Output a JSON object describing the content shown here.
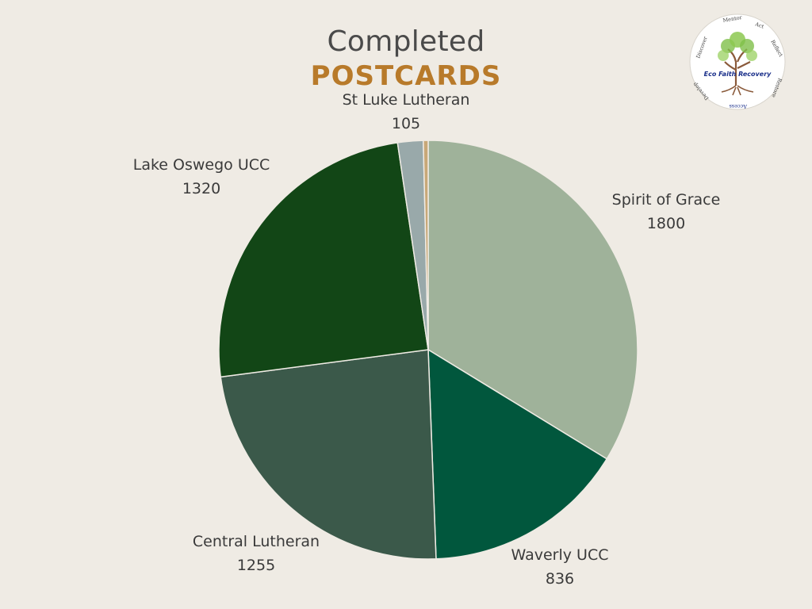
{
  "title": {
    "line1": "Completed",
    "line2": "POSTCARDS"
  },
  "logo": {
    "name": "Eco Faith Recovery",
    "ring_words": [
      "Discover",
      "Mentor",
      "Act",
      "Reflect",
      "Restore",
      "Access",
      "Develop"
    ]
  },
  "colors": {
    "background": "#efebe4",
    "title_gray": "#4a4a4a",
    "title_accent": "#b87a2a"
  },
  "chart_data": {
    "type": "pie",
    "title": "Completed POSTCARDS",
    "start": "top, clockwise",
    "slices": [
      {
        "label": "Spirit of Grace",
        "value": 1800,
        "color": "#9fb29a"
      },
      {
        "label": "Waverly UCC",
        "value": 836,
        "color": "#01573d"
      },
      {
        "label": "Central Lutheran",
        "value": 1255,
        "color": "#3b594a"
      },
      {
        "label": "Lake Oswego UCC",
        "value": 1320,
        "color": "#124616"
      },
      {
        "label": "St Luke Lutheran",
        "value": 105,
        "color": "#99a9aa"
      },
      {
        "label": "",
        "value": 20,
        "color": "#c8a878"
      }
    ]
  }
}
